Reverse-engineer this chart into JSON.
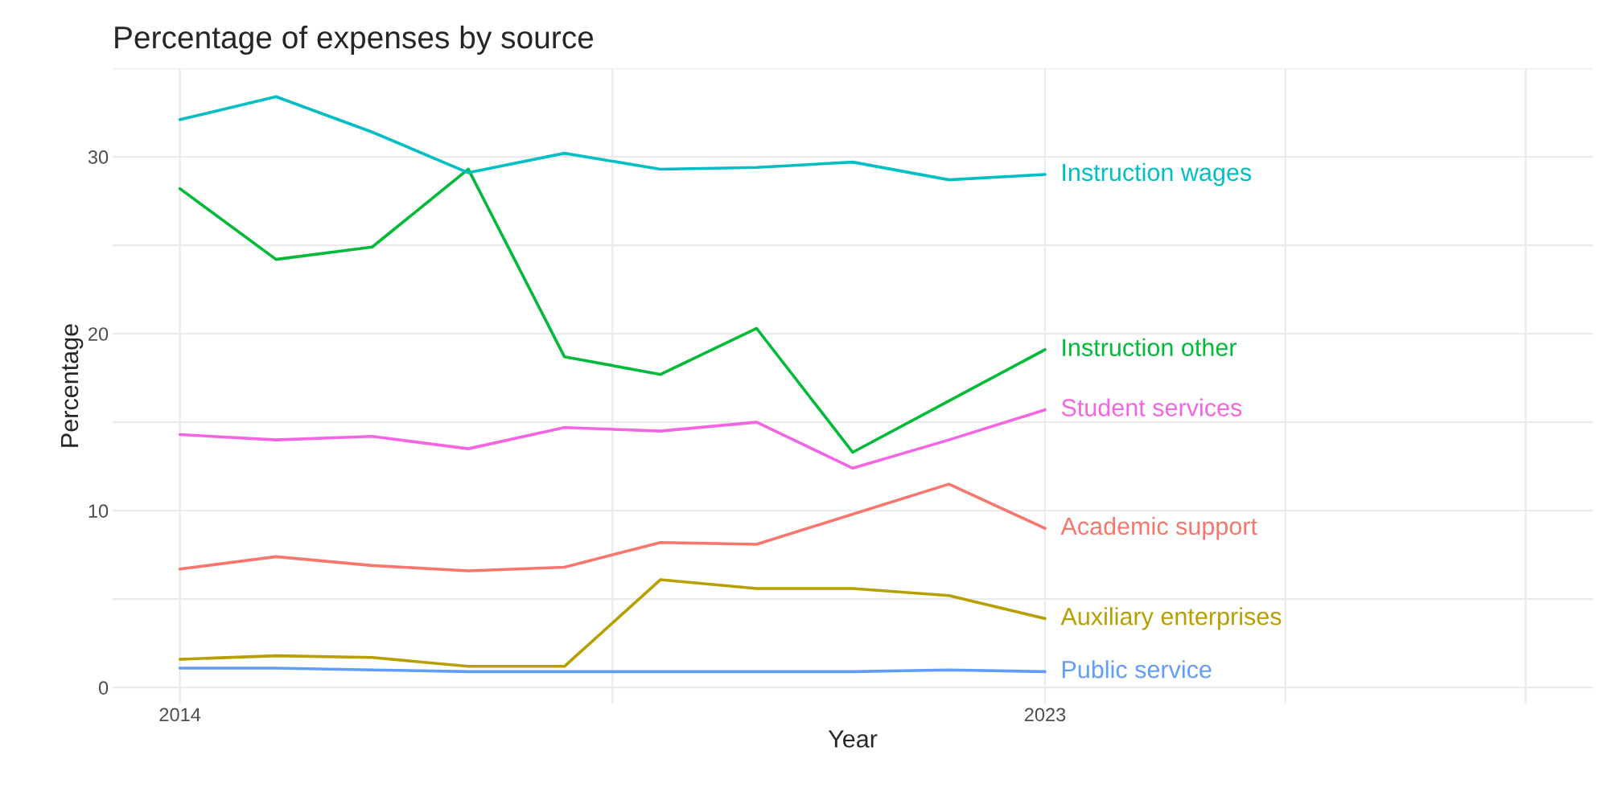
{
  "chart_data": {
    "type": "line",
    "title": "Percentage of expenses by source",
    "xlabel": "Year",
    "ylabel": "Percentage",
    "x": [
      2014,
      2015,
      2016,
      2017,
      2018,
      2019,
      2020,
      2021,
      2022,
      2023
    ],
    "series": [
      {
        "name": "Academic support",
        "color": "#f8766d",
        "values": [
          6.7,
          7.4,
          6.9,
          6.6,
          6.8,
          8.2,
          8.1,
          9.8,
          11.5,
          9.0
        ]
      },
      {
        "name": "Auxiliary enterprises",
        "color": "#b79f00",
        "values": [
          1.6,
          1.8,
          1.7,
          1.2,
          1.2,
          6.1,
          5.6,
          5.6,
          5.2,
          3.9
        ]
      },
      {
        "name": "Instruction other",
        "color": "#00ba38",
        "values": [
          28.2,
          24.2,
          24.9,
          29.3,
          18.7,
          17.7,
          20.3,
          13.3,
          16.2,
          19.1
        ]
      },
      {
        "name": "Instruction wages",
        "color": "#00bfc4",
        "values": [
          32.1,
          33.4,
          31.4,
          29.1,
          30.2,
          29.3,
          29.4,
          29.7,
          28.7,
          29.0
        ]
      },
      {
        "name": "Public service",
        "color": "#619cff",
        "values": [
          1.1,
          1.1,
          1.0,
          0.9,
          0.9,
          0.9,
          0.9,
          0.9,
          1.0,
          0.9
        ]
      },
      {
        "name": "Student services",
        "color": "#f564e3",
        "values": [
          14.3,
          14.0,
          14.2,
          13.5,
          14.7,
          14.5,
          15.0,
          12.4,
          14.0,
          15.7
        ]
      }
    ],
    "xlim": [
      2013.3,
      2028.7
    ],
    "ylim": [
      -0.9,
      35
    ],
    "xticks": [
      2014,
      {
        "value": 2018.5,
        "label": null
      },
      2023,
      {
        "value": 2025.5,
        "label": null
      },
      {
        "value": 2028,
        "label": null
      }
    ],
    "yticks": [
      0,
      {
        "value": 5,
        "label": null
      },
      10,
      {
        "value": 15,
        "label": null
      },
      20,
      {
        "value": 25,
        "label": null
      },
      30,
      {
        "value": 35,
        "label": null
      }
    ],
    "grid": true,
    "legend": false,
    "marker": "none",
    "line_style": "solid"
  }
}
